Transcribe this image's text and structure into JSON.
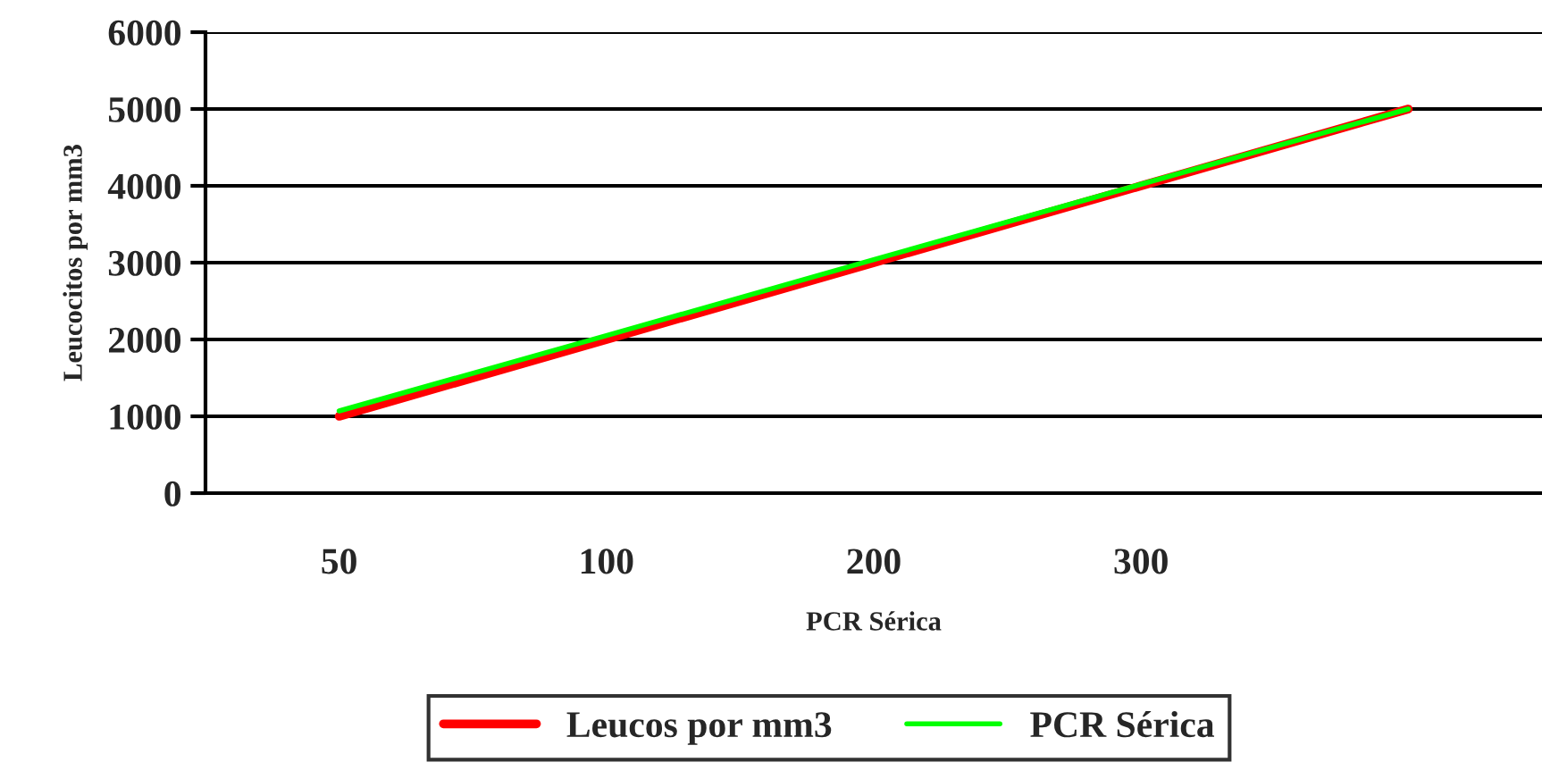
{
  "chart_data": {
    "type": "line",
    "xlabel": "PCR Sérica",
    "ylabel": "Leucocitos por mm3",
    "categories": [
      "50",
      "100",
      "200",
      "300",
      null
    ],
    "series": [
      {
        "name": "Leucos por mm3",
        "color": "#ff0000",
        "values": [
          1000,
          2000,
          3000,
          4000,
          5000
        ]
      },
      {
        "name": "PCR Sérica",
        "color": "#00ff00",
        "values": [
          1070,
          2050,
          3040,
          4020,
          5000
        ]
      }
    ],
    "ylim": [
      0,
      6000
    ],
    "yticks": [
      0,
      1000,
      2000,
      3000,
      4000,
      5000,
      6000
    ],
    "grid": "y",
    "legend": "bottom",
    "marker": "none",
    "line_style": "solid"
  }
}
